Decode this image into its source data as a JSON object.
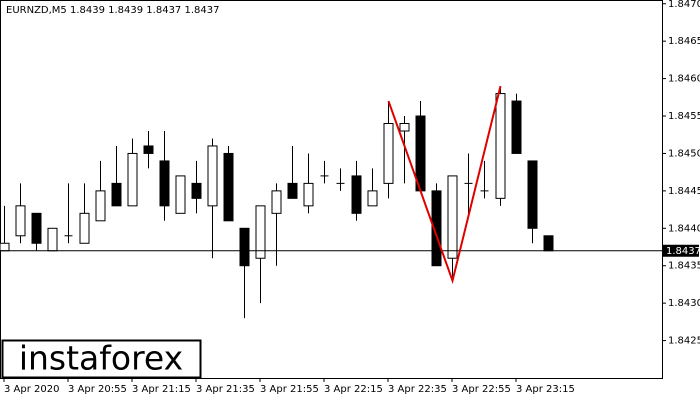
{
  "chart_data": {
    "type": "candlestick",
    "title": "EURNZD,M5  1.8439 1.8439 1.8437 1.8437",
    "watermark": "instaforex",
    "categories": [
      "3 Apr 2020",
      null,
      null,
      null,
      "3 Apr 20:55",
      null,
      null,
      null,
      "3 Apr 21:15",
      null,
      null,
      null,
      "3 Apr 21:35",
      null,
      null,
      null,
      "3 Apr 21:55",
      null,
      null,
      null,
      "3 Apr 22:15",
      null,
      null,
      null,
      "3 Apr 22:35",
      null,
      null,
      null,
      "3 Apr 22:55",
      null,
      null,
      null,
      "3 Apr 23:15",
      null,
      null
    ],
    "open": [
      1.8437,
      1.8439,
      1.8442,
      1.8437,
      1.8439,
      1.8438,
      1.8441,
      1.8446,
      1.8443,
      1.8451,
      1.8449,
      1.8442,
      1.8446,
      1.8443,
      1.845,
      1.844,
      1.8436,
      1.8442,
      1.8446,
      1.8443,
      1.8447,
      1.8446,
      1.8447,
      1.8443,
      1.8446,
      1.8453,
      1.8455,
      1.8445,
      1.8436,
      1.8446,
      1.8445,
      1.8444,
      1.8457,
      1.8449,
      1.8439
    ],
    "high": [
      1.8443,
      1.8446,
      1.8442,
      1.844,
      1.8446,
      1.8446,
      1.8449,
      1.8451,
      1.8452,
      1.8453,
      1.8453,
      1.8447,
      1.8449,
      1.8452,
      1.8451,
      1.844,
      1.8443,
      1.8446,
      1.8451,
      1.845,
      1.8449,
      1.8448,
      1.8449,
      1.8448,
      1.8457,
      1.8455,
      1.8457,
      1.8446,
      1.8447,
      1.845,
      1.8449,
      1.8459,
      1.8458,
      1.8449,
      1.8439
    ],
    "low": [
      1.8437,
      1.8438,
      1.8437,
      1.8437,
      1.8438,
      1.8438,
      1.8441,
      1.8443,
      1.8443,
      1.8448,
      1.8441,
      1.8442,
      1.8442,
      1.8436,
      1.8441,
      1.8428,
      1.843,
      1.8435,
      1.8444,
      1.8442,
      1.8446,
      1.8445,
      1.8441,
      1.8443,
      1.8444,
      1.8446,
      1.8445,
      1.8435,
      1.8433,
      1.8442,
      1.8444,
      1.8443,
      1.845,
      1.8438,
      1.8437
    ],
    "close": [
      1.8438,
      1.8443,
      1.8438,
      1.844,
      1.8439,
      1.8442,
      1.8445,
      1.8443,
      1.845,
      1.845,
      1.8443,
      1.8447,
      1.8444,
      1.8451,
      1.8441,
      1.8435,
      1.8443,
      1.8445,
      1.8444,
      1.8446,
      1.8447,
      1.8446,
      1.8442,
      1.8445,
      1.8454,
      1.8454,
      1.8445,
      1.8435,
      1.8447,
      1.8446,
      1.8445,
      1.8458,
      1.845,
      1.844,
      1.8437
    ],
    "up_color": "#ffffff",
    "down_color": "#000000",
    "last_price": 1.8437,
    "pattern_line": {
      "color": "#e00000",
      "index": [
        24,
        28,
        31
      ],
      "values": [
        1.8457,
        1.8433,
        1.8459
      ]
    },
    "ylim": [
      1.842,
      1.84705
    ],
    "yticks": [
      1.8425,
      {
        "value": 1.843,
        "label": "1.8430"
      },
      1.8435,
      {
        "value": 1.844,
        "label": "1.8440"
      },
      1.8445,
      {
        "value": 1.845,
        "label": "1.8450"
      },
      1.8455,
      {
        "value": 1.846,
        "label": "1.8460"
      },
      1.8465,
      {
        "value": 1.847,
        "label": "1.8470"
      }
    ],
    "grid": false
  }
}
